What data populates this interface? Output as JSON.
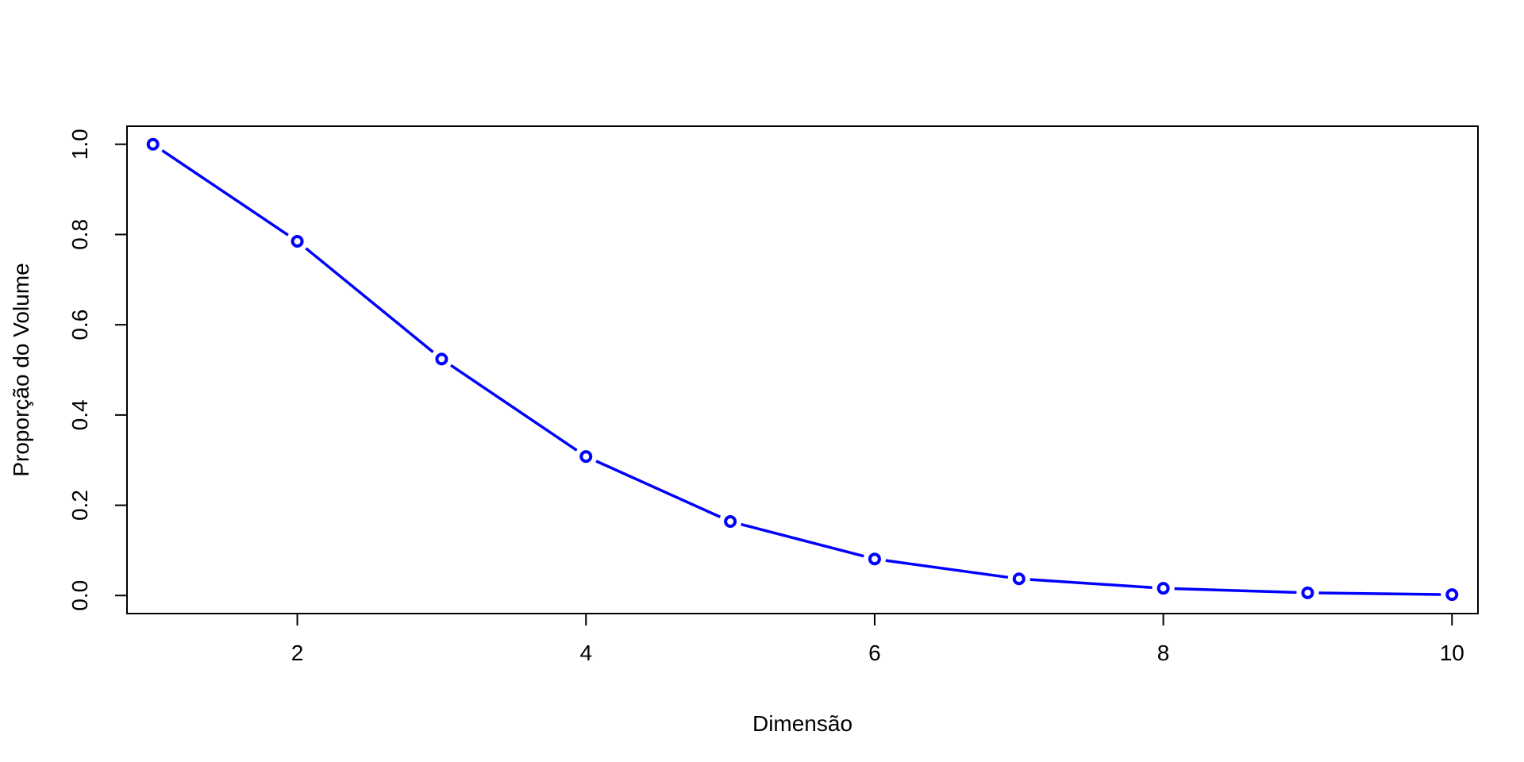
{
  "chart_data": {
    "type": "line",
    "title": "",
    "xlabel": "Dimensão",
    "ylabel": "Proporção do Volume",
    "xlim": [
      0.82,
      10.18
    ],
    "ylim": [
      -0.04,
      1.04
    ],
    "x_ticks": [
      2,
      4,
      6,
      8,
      10
    ],
    "x_tick_labels": [
      "2",
      "4",
      "6",
      "8",
      "10"
    ],
    "y_ticks": [
      0.0,
      0.2,
      0.4,
      0.6,
      0.8,
      1.0
    ],
    "y_tick_labels": [
      "0.0",
      "0.2",
      "0.4",
      "0.6",
      "0.8",
      "1.0"
    ],
    "grid": false,
    "series": [
      {
        "x": [
          1,
          2,
          3,
          4,
          5,
          6,
          7,
          8,
          9,
          10
        ],
        "values": [
          1.0,
          0.785,
          0.524,
          0.308,
          0.164,
          0.081,
          0.037,
          0.016,
          0.006,
          0.002
        ],
        "color": "#0000ff",
        "marker": "open-circle",
        "line_style": "solid"
      }
    ]
  }
}
